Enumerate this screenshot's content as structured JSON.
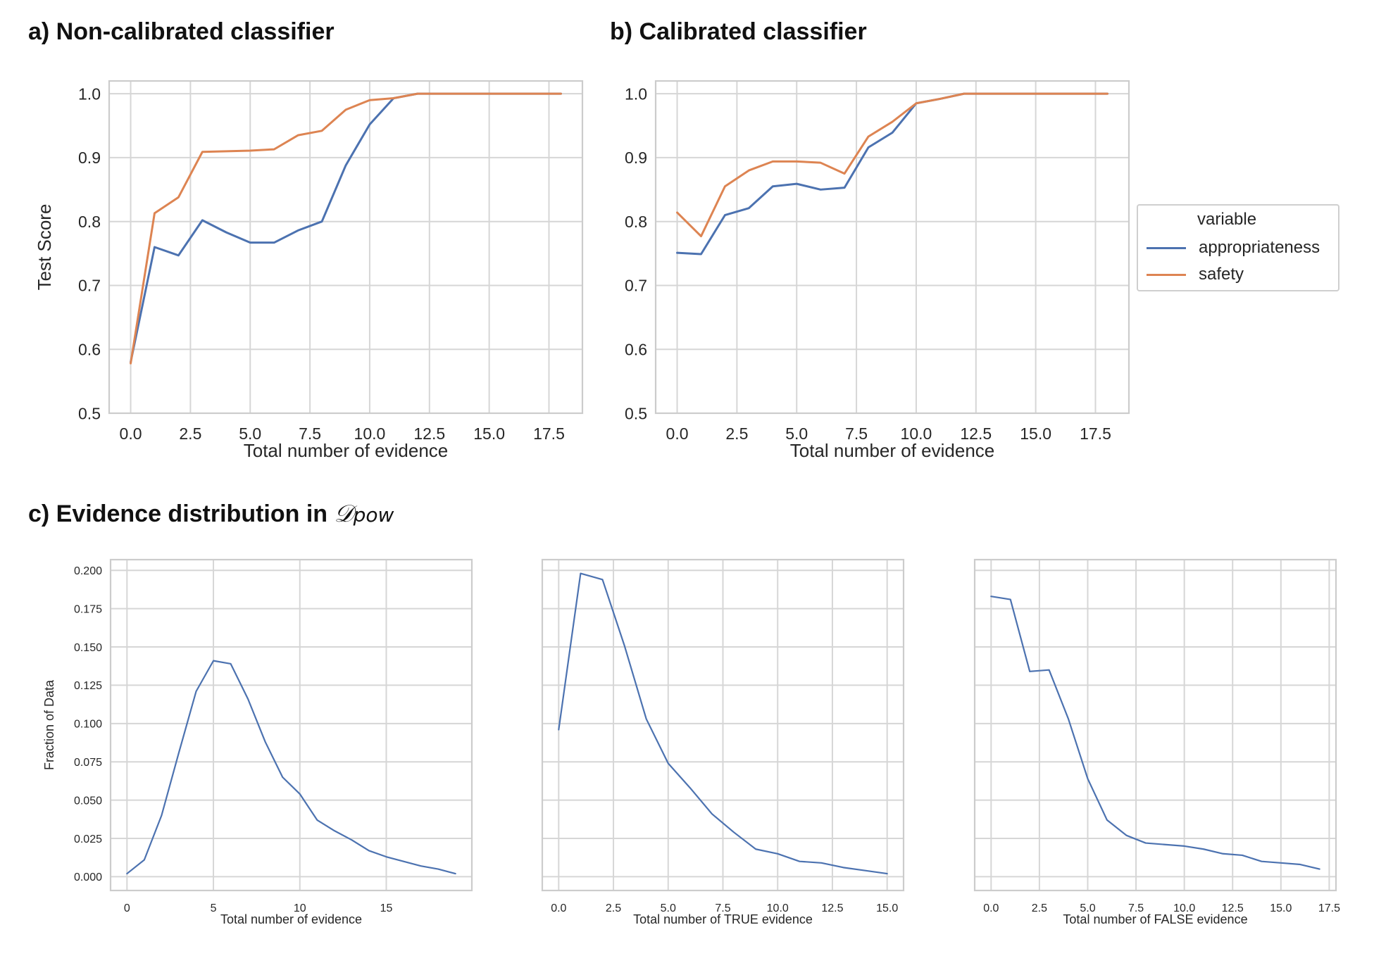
{
  "titles": {
    "a": "a) Non-calibrated classifier",
    "b": "b) Calibrated classifier",
    "c_prefix": "c) Evidence distribution in ",
    "c_math": "𝒟",
    "c_sub": "pow"
  },
  "colors": {
    "appropriateness": "#4c72b0",
    "safety": "#dd8452",
    "grid": "#d6d6d6",
    "axis_text": "#262626"
  },
  "legend": {
    "title": "variable",
    "items": [
      {
        "label": "appropriateness",
        "color": "#4c72b0"
      },
      {
        "label": "safety",
        "color": "#dd8452"
      }
    ]
  },
  "chart_data": [
    {
      "id": "a",
      "type": "line",
      "xlabel": "Total number of evidence",
      "ylabel": "Test Score",
      "xlim": [
        -0.9,
        18.9
      ],
      "ylim": [
        0.5,
        1.02
      ],
      "xticks": [
        0.0,
        2.5,
        5.0,
        7.5,
        10.0,
        12.5,
        15.0,
        17.5
      ],
      "xtick_labels": [
        "0.0",
        "2.5",
        "5.0",
        "7.5",
        "10.0",
        "12.5",
        "15.0",
        "17.5"
      ],
      "yticks": [
        0.5,
        0.6,
        0.7,
        0.8,
        0.9,
        1.0
      ],
      "ytick_labels": [
        "0.5",
        "0.6",
        "0.7",
        "0.8",
        "0.9",
        "1.0"
      ],
      "grid": true,
      "series": [
        {
          "name": "appropriateness",
          "color": "#4c72b0",
          "x": [
            0,
            1,
            2,
            3,
            4,
            5,
            6,
            7,
            8,
            9,
            10,
            11,
            12,
            13,
            14,
            15,
            16,
            17,
            18
          ],
          "y": [
            0.58,
            0.76,
            0.747,
            0.802,
            0.783,
            0.767,
            0.767,
            0.786,
            0.8,
            0.888,
            0.952,
            0.993,
            1.0,
            1.0,
            1.0,
            1.0,
            1.0,
            1.0,
            1.0
          ]
        },
        {
          "name": "safety",
          "color": "#dd8452",
          "x": [
            0,
            1,
            2,
            3,
            4,
            5,
            6,
            7,
            8,
            9,
            10,
            11,
            12,
            13,
            14,
            15,
            16,
            17,
            18
          ],
          "y": [
            0.578,
            0.813,
            0.838,
            0.909,
            0.91,
            0.911,
            0.913,
            0.935,
            0.942,
            0.975,
            0.99,
            0.993,
            1.0,
            1.0,
            1.0,
            1.0,
            1.0,
            1.0,
            1.0
          ]
        }
      ]
    },
    {
      "id": "b",
      "type": "line",
      "xlabel": "Total number of evidence",
      "ylabel": "",
      "xlim": [
        -0.9,
        18.9
      ],
      "ylim": [
        0.5,
        1.02
      ],
      "xticks": [
        0.0,
        2.5,
        5.0,
        7.5,
        10.0,
        12.5,
        15.0,
        17.5
      ],
      "xtick_labels": [
        "0.0",
        "2.5",
        "5.0",
        "7.5",
        "10.0",
        "12.5",
        "15.0",
        "17.5"
      ],
      "yticks": [
        0.5,
        0.6,
        0.7,
        0.8,
        0.9,
        1.0
      ],
      "ytick_labels": [
        "0.5",
        "0.6",
        "0.7",
        "0.8",
        "0.9",
        "1.0"
      ],
      "grid": true,
      "series": [
        {
          "name": "appropriateness",
          "color": "#4c72b0",
          "x": [
            0,
            1,
            2,
            3,
            4,
            5,
            6,
            7,
            8,
            9,
            10,
            11,
            12,
            13,
            14,
            15,
            16,
            17,
            18
          ],
          "y": [
            0.751,
            0.749,
            0.81,
            0.821,
            0.855,
            0.859,
            0.85,
            0.853,
            0.916,
            0.939,
            0.985,
            0.992,
            1.0,
            1.0,
            1.0,
            1.0,
            1.0,
            1.0,
            1.0
          ]
        },
        {
          "name": "safety",
          "color": "#dd8452",
          "x": [
            0,
            1,
            2,
            3,
            4,
            5,
            6,
            7,
            8,
            9,
            10,
            11,
            12,
            13,
            14,
            15,
            16,
            17,
            18
          ],
          "y": [
            0.814,
            0.777,
            0.855,
            0.88,
            0.894,
            0.894,
            0.892,
            0.875,
            0.933,
            0.956,
            0.985,
            0.992,
            1.0,
            1.0,
            1.0,
            1.0,
            1.0,
            1.0,
            1.0
          ]
        }
      ]
    },
    {
      "id": "c1",
      "type": "line",
      "xlabel": "Total number of evidence",
      "ylabel": "Fraction of Data",
      "xlim": [
        -0.95,
        19.95
      ],
      "ylim": [
        -0.009,
        0.207
      ],
      "xticks": [
        0,
        5,
        10,
        15
      ],
      "xtick_labels": [
        "0",
        "5",
        "10",
        "15"
      ],
      "yticks": [
        0.0,
        0.025,
        0.05,
        0.075,
        0.1,
        0.125,
        0.15,
        0.175,
        0.2
      ],
      "ytick_labels": [
        "0.000",
        "0.025",
        "0.050",
        "0.075",
        "0.100",
        "0.125",
        "0.150",
        "0.175",
        "0.200"
      ],
      "grid": true,
      "series": [
        {
          "color": "#4c72b0",
          "x": [
            0,
            1,
            2,
            3,
            4,
            5,
            6,
            7,
            8,
            9,
            10,
            11,
            12,
            13,
            14,
            15,
            16,
            17,
            18,
            19
          ],
          "y": [
            0.002,
            0.011,
            0.04,
            0.081,
            0.121,
            0.141,
            0.139,
            0.116,
            0.088,
            0.065,
            0.054,
            0.037,
            0.03,
            0.024,
            0.017,
            0.013,
            0.01,
            0.007,
            0.005,
            0.002
          ]
        }
      ]
    },
    {
      "id": "c2",
      "type": "line",
      "xlabel": "Total number of TRUE evidence",
      "ylabel": "",
      "xlim": [
        -0.75,
        15.75
      ],
      "ylim": [
        -0.009,
        0.207
      ],
      "xticks": [
        0.0,
        2.5,
        5.0,
        7.5,
        10.0,
        12.5,
        15.0
      ],
      "xtick_labels": [
        "0.0",
        "2.5",
        "5.0",
        "7.5",
        "10.0",
        "12.5",
        "15.0"
      ],
      "yticks": [
        0.0,
        0.025,
        0.05,
        0.075,
        0.1,
        0.125,
        0.15,
        0.175,
        0.2
      ],
      "ytick_labels": [],
      "grid": true,
      "series": [
        {
          "color": "#4c72b0",
          "x": [
            0,
            1,
            2,
            3,
            4,
            5,
            6,
            7,
            8,
            9,
            10,
            11,
            12,
            13,
            14,
            15
          ],
          "y": [
            0.096,
            0.198,
            0.194,
            0.151,
            0.103,
            0.074,
            0.058,
            0.041,
            0.029,
            0.018,
            0.015,
            0.01,
            0.009,
            0.006,
            0.004,
            0.002
          ]
        }
      ]
    },
    {
      "id": "c3",
      "type": "line",
      "xlabel": "Total number of FALSE evidence",
      "ylabel": "",
      "xlim": [
        -0.85,
        17.85
      ],
      "ylim": [
        -0.009,
        0.207
      ],
      "xticks": [
        0.0,
        2.5,
        5.0,
        7.5,
        10.0,
        12.5,
        15.0,
        17.5
      ],
      "xtick_labels": [
        "0.0",
        "2.5",
        "5.0",
        "7.5",
        "10.0",
        "12.5",
        "15.0",
        "17.5"
      ],
      "yticks": [
        0.0,
        0.025,
        0.05,
        0.075,
        0.1,
        0.125,
        0.15,
        0.175,
        0.2
      ],
      "ytick_labels": [],
      "grid": true,
      "series": [
        {
          "color": "#4c72b0",
          "x": [
            0,
            1,
            2,
            3,
            4,
            5,
            6,
            7,
            8,
            9,
            10,
            11,
            12,
            13,
            14,
            15,
            16,
            17
          ],
          "y": [
            0.183,
            0.181,
            0.134,
            0.135,
            0.103,
            0.064,
            0.037,
            0.027,
            0.022,
            0.021,
            0.02,
            0.018,
            0.015,
            0.014,
            0.01,
            0.009,
            0.008,
            0.005
          ]
        }
      ]
    }
  ]
}
